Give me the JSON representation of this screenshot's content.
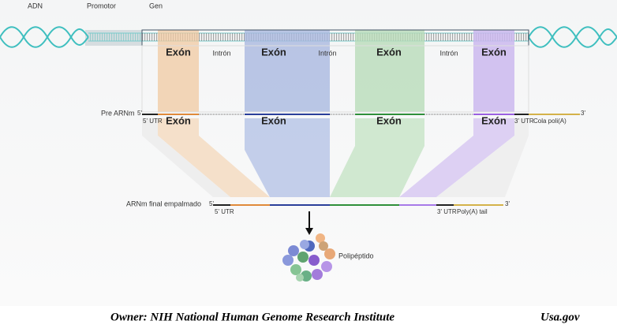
{
  "labels": {
    "dna": "ADN",
    "promoter": "Promotor",
    "gene": "Gen"
  },
  "gene_row": [
    "Exón",
    "Intrón",
    "Exón",
    "Intrón",
    "Exón",
    "Intrón",
    "Exón"
  ],
  "pre_mrna": {
    "label": "Pre ARNm",
    "five_prime": "5'",
    "five_utr": "5' UTR",
    "exons": [
      "Exón",
      "Exón",
      "Exón",
      "Exón"
    ],
    "three_prime": "3'",
    "three_utr": "3' UTR",
    "tail": "Cola poli(A)"
  },
  "final_mrna": {
    "label": "ARNm final empalmado",
    "five_prime": "5'",
    "five_utr": "5' UTR",
    "three_prime": "3'",
    "three_utr": "3' UTR",
    "tail": "Poly(A) tail"
  },
  "polypeptide": "Polipéptido",
  "footer": {
    "owner": "Owner: NIH National Human Genome Research Institute",
    "source": "Usa.gov"
  }
}
